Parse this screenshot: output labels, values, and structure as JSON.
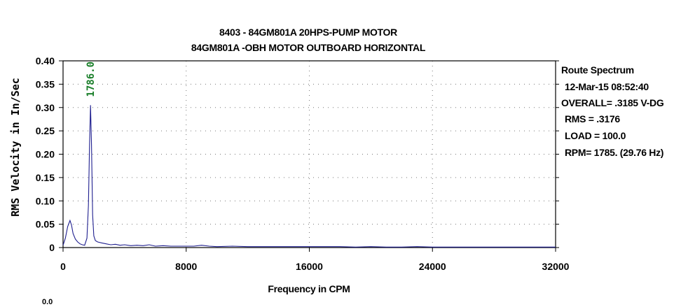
{
  "chart_data": {
    "type": "line",
    "title": "8403 - 84GM801A 20HPS-PUMP MOTOR",
    "subtitle": "84GM801A -OBH  MOTOR OUTBOARD HORIZONTAL",
    "xlabel": "Frequency in CPM",
    "ylabel": "RMS Velocity in In/Sec",
    "xlim": [
      0,
      32000
    ],
    "ylim": [
      0,
      0.4
    ],
    "x_ticks": [
      "0",
      "8000",
      "16000",
      "24000",
      "32000"
    ],
    "y_ticks": [
      "0",
      "0.05",
      "0.10",
      "0.15",
      "0.20",
      "0.25",
      "0.30",
      "0.35",
      "0.40"
    ],
    "grid": true,
    "series_color": "#1f1f8f",
    "peak_label": {
      "text": "1786.0",
      "x": 1786,
      "color": "#1a7f2a"
    },
    "series": [
      {
        "x": [
          0,
          150,
          300,
          450,
          550,
          650,
          800,
          950,
          1100,
          1250,
          1400,
          1550,
          1650,
          1720,
          1786,
          1850,
          1920,
          2000,
          2100,
          2250,
          2500,
          2800,
          3100,
          3400,
          3700,
          4000,
          4400,
          4800,
          5200,
          5600,
          6000,
          6500,
          7000,
          8000,
          8500,
          9000,
          9500,
          10000,
          11000,
          12000,
          13000,
          14000,
          15000,
          16000,
          17000,
          18000,
          19000,
          20000,
          21000,
          22000,
          23000,
          24000,
          25000,
          26000,
          27000,
          28000,
          29000,
          30000,
          31000,
          32000
        ],
        "y": [
          0.005,
          0.02,
          0.045,
          0.058,
          0.048,
          0.03,
          0.018,
          0.012,
          0.008,
          0.006,
          0.005,
          0.02,
          0.09,
          0.22,
          0.305,
          0.22,
          0.07,
          0.025,
          0.015,
          0.012,
          0.01,
          0.008,
          0.006,
          0.007,
          0.005,
          0.006,
          0.004,
          0.005,
          0.004,
          0.006,
          0.003,
          0.004,
          0.003,
          0.003,
          0.003,
          0.005,
          0.003,
          0.002,
          0.003,
          0.002,
          0.002,
          0.002,
          0.002,
          0.002,
          0.002,
          0.002,
          0.001,
          0.002,
          0.001,
          0.001,
          0.002,
          0.001,
          0.001,
          0.001,
          0.001,
          0.001,
          0.001,
          0.001,
          0.001,
          0.001
        ]
      }
    ]
  },
  "info": {
    "line1": "Route Spectrum",
    "line2": "12-Mar-15 08:52:40",
    "line3": "OVERALL= .3185 V-DG",
    "line4": "RMS = .3176",
    "line5": "LOAD = 100.0",
    "line6": "RPM= 1785. (29.76 Hz)"
  },
  "footer_stub": "0.0"
}
